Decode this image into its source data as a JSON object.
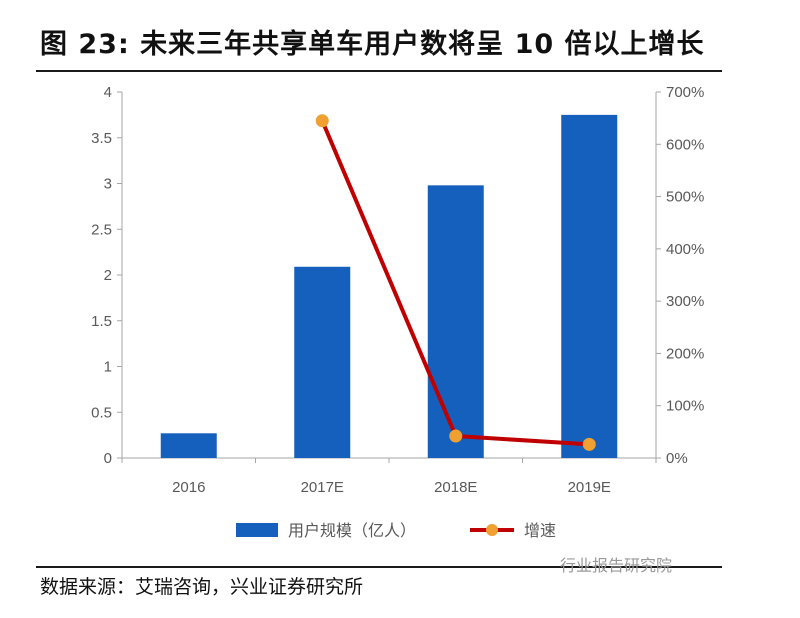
{
  "title": "图  23: 未来三年共享单车用户数将呈 10 倍以上增长",
  "source": "数据来源：艾瑞咨询，兴业证券研究所",
  "watermark": "行业报告研究院",
  "colors": {
    "bar": "#1560BD",
    "line": "#C00000",
    "marker": "#F0A030",
    "axis": "#a6a6a6",
    "text": "#595959"
  },
  "chart_data": {
    "type": "bar",
    "categories": [
      "2016",
      "2017E",
      "2018E",
      "2019E"
    ],
    "series": [
      {
        "name": "用户规模（亿人）",
        "type": "bar",
        "axis": "left",
        "values": [
          0.27,
          2.09,
          2.98,
          3.75
        ]
      },
      {
        "name": "增速",
        "type": "line",
        "axis": "right",
        "values": [
          null,
          645,
          42,
          26
        ]
      }
    ],
    "y_left": {
      "min": 0,
      "max": 4,
      "ticks": [
        "0",
        "0.5",
        "1",
        "1.5",
        "2",
        "2.5",
        "3",
        "3.5",
        "4"
      ]
    },
    "y_right": {
      "min": 0,
      "max": 700,
      "ticks": [
        "0%",
        "100%",
        "200%",
        "300%",
        "400%",
        "500%",
        "600%",
        "700%"
      ]
    },
    "legend_position": "bottom",
    "grid": false
  }
}
